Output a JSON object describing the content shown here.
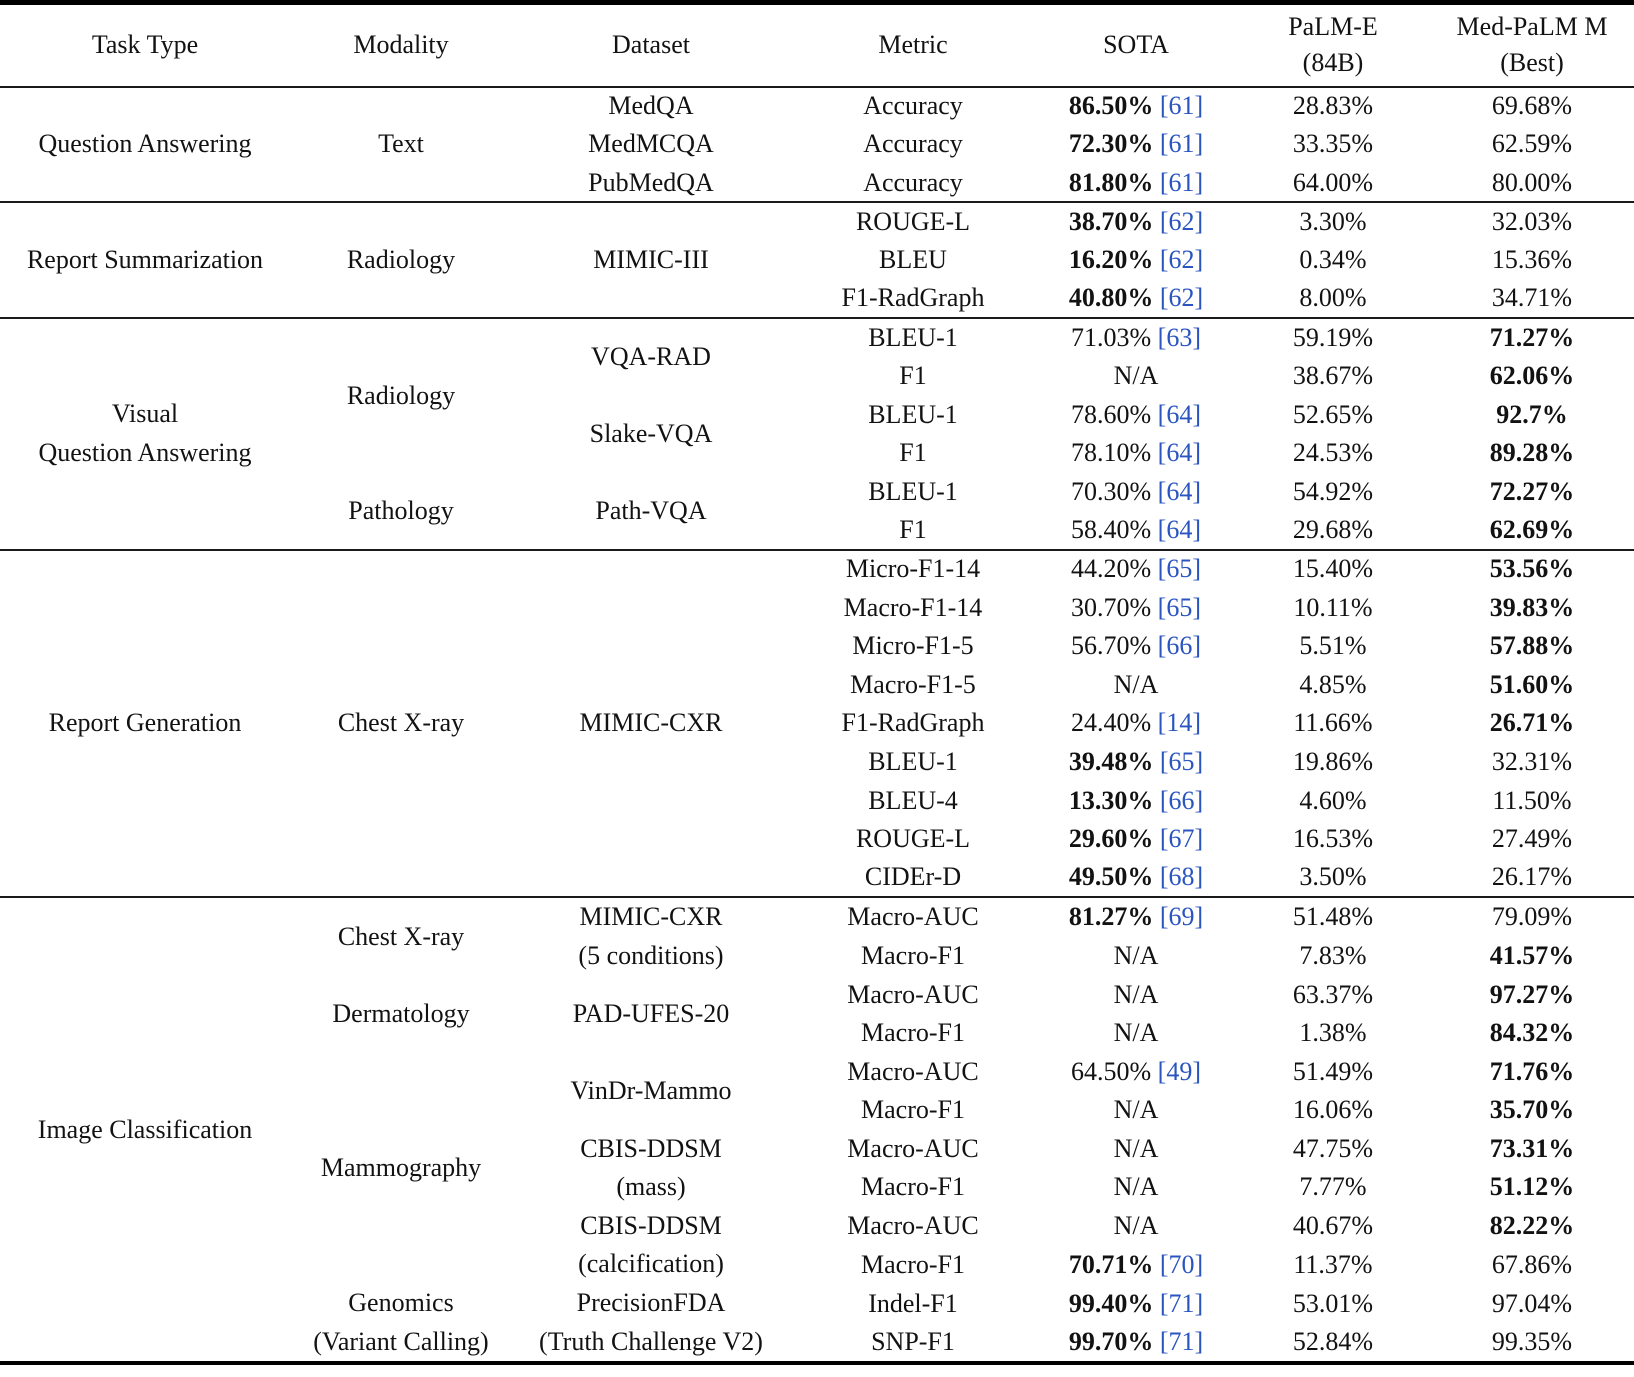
{
  "header": {
    "task_type": "Task Type",
    "modality": "Modality",
    "dataset": "Dataset",
    "metric": "Metric",
    "sota": "SOTA",
    "palm_e_line1": "PaLM-E",
    "palm_e_line2": "(84B)",
    "med_palm_line1": "Med-PaLM M",
    "med_palm_line2": "(Best)"
  },
  "colors": {
    "citation_blue": "#2a55c0",
    "text": "#121212",
    "rule": "#000000"
  },
  "sections": [
    {
      "task_lines": [
        "Question Answering"
      ],
      "modalities": [
        {
          "lines": [
            "Text"
          ],
          "span": 3
        }
      ],
      "datasets": [
        {
          "lines": [
            "MedQA"
          ],
          "span": 1
        },
        {
          "lines": [
            "MedMCQA"
          ],
          "span": 1
        },
        {
          "lines": [
            "PubMedQA"
          ],
          "span": 1
        }
      ],
      "rows": [
        {
          "metric": "Accuracy",
          "sota": "86.50%",
          "sota_bold": true,
          "cite": "[61]",
          "palm_e": "28.83%",
          "palm_e_bold": false,
          "med_palm": "69.68%",
          "med_palm_bold": false
        },
        {
          "metric": "Accuracy",
          "sota": "72.30%",
          "sota_bold": true,
          "cite": "[61]",
          "palm_e": "33.35%",
          "palm_e_bold": false,
          "med_palm": "62.59%",
          "med_palm_bold": false
        },
        {
          "metric": "Accuracy",
          "sota": "81.80%",
          "sota_bold": true,
          "cite": "[61]",
          "palm_e": "64.00%",
          "palm_e_bold": false,
          "med_palm": "80.00%",
          "med_palm_bold": false
        }
      ]
    },
    {
      "task_lines": [
        "Report Summarization"
      ],
      "modalities": [
        {
          "lines": [
            "Radiology"
          ],
          "span": 3
        }
      ],
      "datasets": [
        {
          "lines": [
            "MIMIC-III"
          ],
          "span": 3
        }
      ],
      "rows": [
        {
          "metric": "ROUGE-L",
          "sota": "38.70%",
          "sota_bold": true,
          "cite": "[62]",
          "palm_e": "3.30%",
          "palm_e_bold": false,
          "med_palm": "32.03%",
          "med_palm_bold": false
        },
        {
          "metric": "BLEU",
          "sota": "16.20%",
          "sota_bold": true,
          "cite": "[62]",
          "palm_e": "0.34%",
          "palm_e_bold": false,
          "med_palm": "15.36%",
          "med_palm_bold": false
        },
        {
          "metric": "F1-RadGraph",
          "sota": "40.80%",
          "sota_bold": true,
          "cite": "[62]",
          "palm_e": "8.00%",
          "palm_e_bold": false,
          "med_palm": "34.71%",
          "med_palm_bold": false
        }
      ]
    },
    {
      "task_lines": [
        "Visual",
        "Question Answering"
      ],
      "modalities": [
        {
          "lines": [
            "Radiology"
          ],
          "span": 4
        },
        {
          "lines": [
            "Pathology"
          ],
          "span": 2
        }
      ],
      "datasets": [
        {
          "lines": [
            "VQA-RAD"
          ],
          "span": 2
        },
        {
          "lines": [
            "Slake-VQA"
          ],
          "span": 2
        },
        {
          "lines": [
            "Path-VQA"
          ],
          "span": 2
        }
      ],
      "rows": [
        {
          "metric": "BLEU-1",
          "sota": "71.03%",
          "sota_bold": false,
          "cite": "[63]",
          "palm_e": "59.19%",
          "palm_e_bold": false,
          "med_palm": "71.27%",
          "med_palm_bold": true
        },
        {
          "metric": "F1",
          "sota": "N/A",
          "sota_bold": false,
          "cite": null,
          "palm_e": "38.67%",
          "palm_e_bold": false,
          "med_palm": "62.06%",
          "med_palm_bold": true
        },
        {
          "metric": "BLEU-1",
          "sota": "78.60%",
          "sota_bold": false,
          "cite": "[64]",
          "palm_e": "52.65%",
          "palm_e_bold": false,
          "med_palm": "92.7%",
          "med_palm_bold": true
        },
        {
          "metric": "F1",
          "sota": "78.10%",
          "sota_bold": false,
          "cite": "[64]",
          "palm_e": "24.53%",
          "palm_e_bold": false,
          "med_palm": "89.28%",
          "med_palm_bold": true
        },
        {
          "metric": "BLEU-1",
          "sota": "70.30%",
          "sota_bold": false,
          "cite": "[64]",
          "palm_e": "54.92%",
          "palm_e_bold": false,
          "med_palm": "72.27%",
          "med_palm_bold": true
        },
        {
          "metric": "F1",
          "sota": "58.40%",
          "sota_bold": false,
          "cite": "[64]",
          "palm_e": "29.68%",
          "palm_e_bold": false,
          "med_palm": "62.69%",
          "med_palm_bold": true
        }
      ]
    },
    {
      "task_lines": [
        "Report Generation"
      ],
      "modalities": [
        {
          "lines": [
            "Chest X-ray"
          ],
          "span": 9
        }
      ],
      "datasets": [
        {
          "lines": [
            "MIMIC-CXR"
          ],
          "span": 9
        }
      ],
      "rows": [
        {
          "metric": "Micro-F1-14",
          "sota": "44.20%",
          "sota_bold": false,
          "cite": "[65]",
          "palm_e": "15.40%",
          "palm_e_bold": false,
          "med_palm": "53.56%",
          "med_palm_bold": true
        },
        {
          "metric": "Macro-F1-14",
          "sota": "30.70%",
          "sota_bold": false,
          "cite": "[65]",
          "palm_e": "10.11%",
          "palm_e_bold": false,
          "med_palm": "39.83%",
          "med_palm_bold": true
        },
        {
          "metric": "Micro-F1-5",
          "sota": "56.70%",
          "sota_bold": false,
          "cite": "[66]",
          "palm_e": "5.51%",
          "palm_e_bold": false,
          "med_palm": "57.88%",
          "med_palm_bold": true
        },
        {
          "metric": "Macro-F1-5",
          "sota": "N/A",
          "sota_bold": false,
          "cite": null,
          "palm_e": "4.85%",
          "palm_e_bold": false,
          "med_palm": "51.60%",
          "med_palm_bold": true
        },
        {
          "metric": "F1-RadGraph",
          "sota": "24.40%",
          "sota_bold": false,
          "cite": "[14]",
          "palm_e": "11.66%",
          "palm_e_bold": false,
          "med_palm": "26.71%",
          "med_palm_bold": true
        },
        {
          "metric": "BLEU-1",
          "sota": "39.48%",
          "sota_bold": true,
          "cite": "[65]",
          "palm_e": "19.86%",
          "palm_e_bold": false,
          "med_palm": "32.31%",
          "med_palm_bold": false
        },
        {
          "metric": "BLEU-4",
          "sota": "13.30%",
          "sota_bold": true,
          "cite": "[66]",
          "palm_e": "4.60%",
          "palm_e_bold": false,
          "med_palm": "11.50%",
          "med_palm_bold": false
        },
        {
          "metric": "ROUGE-L",
          "sota": "29.60%",
          "sota_bold": true,
          "cite": "[67]",
          "palm_e": "16.53%",
          "palm_e_bold": false,
          "med_palm": "27.49%",
          "med_palm_bold": false
        },
        {
          "metric": "CIDEr-D",
          "sota": "49.50%",
          "sota_bold": true,
          "cite": "[68]",
          "palm_e": "3.50%",
          "palm_e_bold": false,
          "med_palm": "26.17%",
          "med_palm_bold": false
        }
      ]
    },
    {
      "task_lines": [
        "Image Classification"
      ],
      "modalities": [
        {
          "lines": [
            "Chest X-ray"
          ],
          "span": 2
        },
        {
          "lines": [
            "Dermatology"
          ],
          "span": 2
        },
        {
          "lines": [
            "Mammography"
          ],
          "span": 6
        },
        {
          "lines": [
            "Genomics",
            "(Variant Calling)"
          ],
          "span": 2
        }
      ],
      "datasets": [
        {
          "lines": [
            "MIMIC-CXR",
            "(5 conditions)"
          ],
          "span": 2
        },
        {
          "lines": [
            "PAD-UFES-20"
          ],
          "span": 2
        },
        {
          "lines": [
            "VinDr-Mammo"
          ],
          "span": 2
        },
        {
          "lines": [
            "CBIS-DDSM",
            "(mass)"
          ],
          "span": 2
        },
        {
          "lines": [
            "CBIS-DDSM",
            "(calcification)"
          ],
          "span": 2
        },
        {
          "lines": [
            "PrecisionFDA",
            "(Truth Challenge V2)"
          ],
          "span": 2
        }
      ],
      "rows": [
        {
          "metric": "Macro-AUC",
          "sota": "81.27%",
          "sota_bold": true,
          "cite": "[69]",
          "palm_e": "51.48%",
          "palm_e_bold": false,
          "med_palm": "79.09%",
          "med_palm_bold": false
        },
        {
          "metric": "Macro-F1",
          "sota": "N/A",
          "sota_bold": false,
          "cite": null,
          "palm_e": "7.83%",
          "palm_e_bold": false,
          "med_palm": "41.57%",
          "med_palm_bold": true
        },
        {
          "metric": "Macro-AUC",
          "sota": "N/A",
          "sota_bold": false,
          "cite": null,
          "palm_e": "63.37%",
          "palm_e_bold": false,
          "med_palm": "97.27%",
          "med_palm_bold": true
        },
        {
          "metric": "Macro-F1",
          "sota": "N/A",
          "sota_bold": false,
          "cite": null,
          "palm_e": "1.38%",
          "palm_e_bold": false,
          "med_palm": "84.32%",
          "med_palm_bold": true
        },
        {
          "metric": "Macro-AUC",
          "sota": "64.50%",
          "sota_bold": false,
          "cite": "[49]",
          "palm_e": "51.49%",
          "palm_e_bold": false,
          "med_palm": "71.76%",
          "med_palm_bold": true
        },
        {
          "metric": "Macro-F1",
          "sota": "N/A",
          "sota_bold": false,
          "cite": null,
          "palm_e": "16.06%",
          "palm_e_bold": false,
          "med_palm": "35.70%",
          "med_palm_bold": true
        },
        {
          "metric": "Macro-AUC",
          "sota": "N/A",
          "sota_bold": false,
          "cite": null,
          "palm_e": "47.75%",
          "palm_e_bold": false,
          "med_palm": "73.31%",
          "med_palm_bold": true
        },
        {
          "metric": "Macro-F1",
          "sota": "N/A",
          "sota_bold": false,
          "cite": null,
          "palm_e": "7.77%",
          "palm_e_bold": false,
          "med_palm": "51.12%",
          "med_palm_bold": true
        },
        {
          "metric": "Macro-AUC",
          "sota": "N/A",
          "sota_bold": false,
          "cite": null,
          "palm_e": "40.67%",
          "palm_e_bold": false,
          "med_palm": "82.22%",
          "med_palm_bold": true
        },
        {
          "metric": "Macro-F1",
          "sota": "70.71%",
          "sota_bold": true,
          "cite": "[70]",
          "palm_e": "11.37%",
          "palm_e_bold": false,
          "med_palm": "67.86%",
          "med_palm_bold": false
        },
        {
          "metric": "Indel-F1",
          "sota": "99.40%",
          "sota_bold": true,
          "cite": "[71]",
          "palm_e": "53.01%",
          "palm_e_bold": false,
          "med_palm": "97.04%",
          "med_palm_bold": false
        },
        {
          "metric": "SNP-F1",
          "sota": "99.70%",
          "sota_bold": true,
          "cite": "[71]",
          "palm_e": "52.84%",
          "palm_e_bold": false,
          "med_palm": "99.35%",
          "med_palm_bold": false
        }
      ]
    }
  ]
}
